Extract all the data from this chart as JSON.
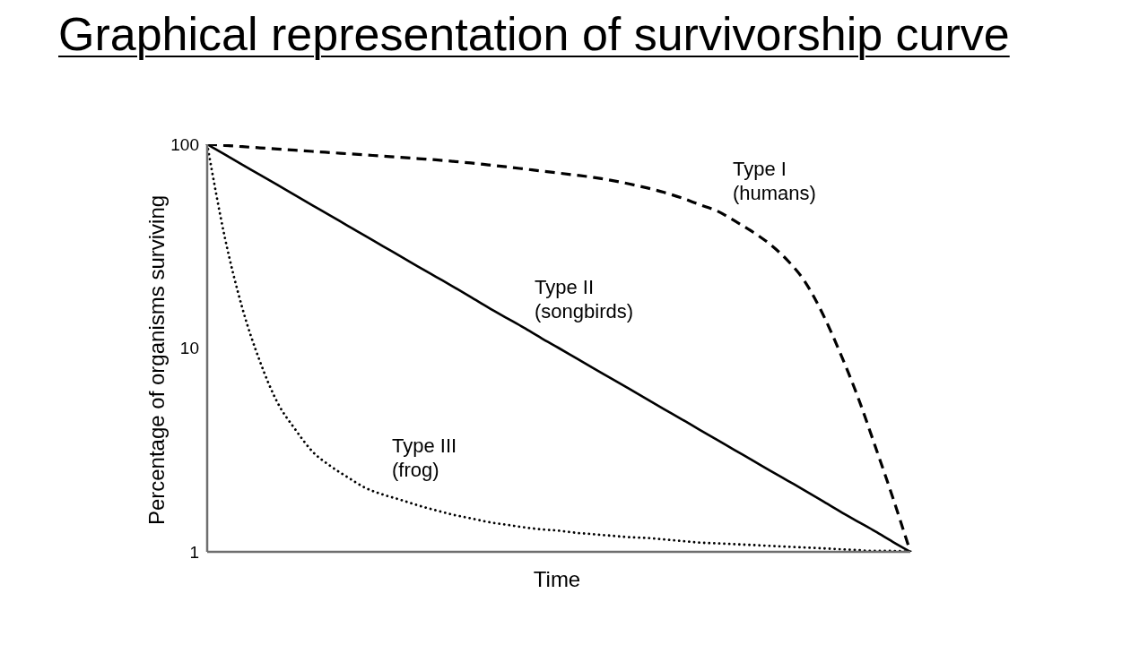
{
  "chart_data": {
    "type": "line",
    "title": "Graphical representation of survivorship curve",
    "xlabel": "Time",
    "ylabel": "Percentage of organisms surviving",
    "categories": [
      null,
      null,
      null,
      null,
      null,
      null,
      null,
      null,
      null,
      null,
      null,
      null,
      null,
      null,
      null,
      null,
      null,
      null,
      null,
      null,
      null,
      null,
      null,
      null,
      null,
      null,
      null,
      null,
      null,
      null,
      null,
      null,
      null,
      null,
      null,
      null,
      null,
      null,
      null,
      null,
      null
    ],
    "series": [
      {
        "name": "Type I\n(humans)",
        "color": "#000000",
        "line_style": "dashed",
        "values": [
          100,
          98.7,
          97.3,
          96.0,
          94.7,
          93.5,
          92.2,
          91.0,
          89.8,
          88.6,
          87.4,
          86.3,
          85.0,
          83.8,
          82.4,
          80.9,
          79.2,
          77.5,
          75.7,
          73.9,
          72.2,
          70.5,
          68.7,
          66.5,
          63.9,
          61.1,
          58.0,
          54.5,
          50.6,
          47.1,
          42.1,
          37.3,
          32.4,
          27.0,
          21.2,
          14.8,
          9.5,
          5.8,
          3.3,
          1.85,
          1
        ]
      },
      {
        "name": "Type II\n(songbirds)",
        "color": "#000000",
        "line_style": "solid",
        "values": [
          100,
          89.1,
          79.4,
          70.8,
          63.1,
          56.2,
          50.1,
          44.7,
          39.8,
          35.5,
          31.6,
          28.2,
          25.1,
          22.4,
          20.0,
          17.8,
          15.8,
          14.1,
          12.6,
          11.2,
          10.0,
          8.91,
          7.94,
          7.08,
          6.31,
          5.62,
          5.01,
          4.47,
          3.98,
          3.55,
          3.16,
          2.82,
          2.51,
          2.24,
          2.0,
          1.78,
          1.58,
          1.41,
          1.26,
          1.12,
          1
        ]
      },
      {
        "name": "Type III\n(frog)",
        "color": "#000000",
        "line_style": "dotted",
        "values": [
          100,
          35,
          15.7,
          8.6,
          5.4,
          4.0,
          3.1,
          2.64,
          2.32,
          2.06,
          1.91,
          1.8,
          1.69,
          1.6,
          1.52,
          1.46,
          1.4,
          1.36,
          1.32,
          1.29,
          1.27,
          1.24,
          1.22,
          1.2,
          1.18,
          1.17,
          1.15,
          1.13,
          1.11,
          1.1,
          1.09,
          1.08,
          1.07,
          1.06,
          1.05,
          1.04,
          1.03,
          1.02,
          1.01,
          1.01,
          1
        ]
      }
    ],
    "ylim": [
      1,
      100
    ],
    "yticks": [
      1,
      10,
      100
    ],
    "log": "y",
    "tick_labels": "y"
  }
}
